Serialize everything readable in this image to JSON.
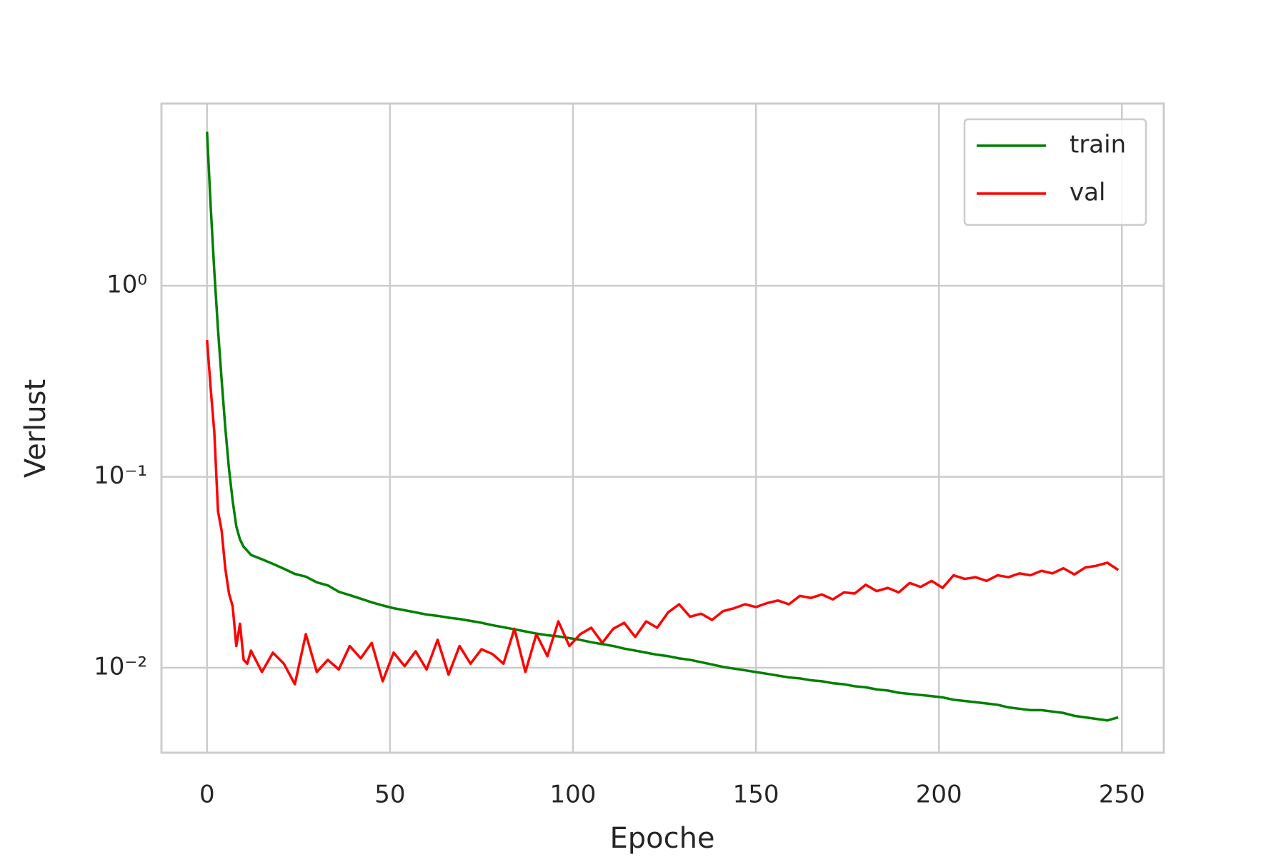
{
  "chart_data": {
    "type": "line",
    "xlabel": "Epoche",
    "ylabel": "Verlust",
    "yscale": "log",
    "grid": true,
    "legend": "upper right",
    "x": [
      0,
      1,
      2,
      3,
      4,
      5,
      6,
      7,
      8,
      9,
      10,
      11,
      12,
      15,
      18,
      21,
      24,
      27,
      30,
      33,
      36,
      39,
      42,
      45,
      48,
      51,
      54,
      57,
      60,
      63,
      66,
      69,
      72,
      75,
      78,
      81,
      84,
      87,
      90,
      93,
      96,
      99,
      102,
      105,
      108,
      111,
      114,
      117,
      120,
      123,
      126,
      129,
      132,
      135,
      138,
      141,
      144,
      147,
      150,
      153,
      156,
      159,
      162,
      165,
      168,
      171,
      174,
      177,
      180,
      183,
      186,
      189,
      192,
      195,
      198,
      201,
      204,
      207,
      210,
      213,
      216,
      219,
      222,
      225,
      228,
      231,
      234,
      237,
      240,
      243,
      246,
      249
    ],
    "series": [
      {
        "name": "train",
        "color": "#008000",
        "values": [
          6.4,
          2.6,
          1.18,
          0.59,
          0.32,
          0.18,
          0.11,
          0.075,
          0.055,
          0.047,
          0.043,
          0.041,
          0.039,
          0.037,
          0.035,
          0.033,
          0.031,
          0.03,
          0.028,
          0.027,
          0.025,
          0.024,
          0.023,
          0.022,
          0.0212,
          0.0205,
          0.02,
          0.0195,
          0.019,
          0.0187,
          0.0183,
          0.018,
          0.0176,
          0.0172,
          0.0167,
          0.0163,
          0.0159,
          0.0155,
          0.0151,
          0.0148,
          0.0146,
          0.0143,
          0.014,
          0.0136,
          0.0133,
          0.013,
          0.0126,
          0.0123,
          0.012,
          0.0117,
          0.0115,
          0.0112,
          0.011,
          0.0107,
          0.0104,
          0.0101,
          0.0099,
          0.0097,
          0.0095,
          0.0093,
          0.0091,
          0.0089,
          0.0088,
          0.0086,
          0.0085,
          0.0083,
          0.0082,
          0.008,
          0.0079,
          0.0077,
          0.0076,
          0.0074,
          0.0073,
          0.0072,
          0.0071,
          0.007,
          0.0068,
          0.0067,
          0.0066,
          0.0065,
          0.0064,
          0.0062,
          0.0061,
          0.006,
          0.006,
          0.0059,
          0.0058,
          0.0056,
          0.0055,
          0.0054,
          0.0053,
          0.0055
        ]
      },
      {
        "name": "val",
        "color": "#ff0000",
        "values": [
          0.52,
          0.29,
          0.17,
          0.066,
          0.052,
          0.033,
          0.0245,
          0.021,
          0.013,
          0.017,
          0.011,
          0.0105,
          0.0123,
          0.0095,
          0.012,
          0.0105,
          0.0082,
          0.015,
          0.0095,
          0.011,
          0.0098,
          0.013,
          0.0112,
          0.0135,
          0.0085,
          0.012,
          0.0102,
          0.0122,
          0.0098,
          0.014,
          0.0092,
          0.013,
          0.0105,
          0.0125,
          0.0118,
          0.0105,
          0.016,
          0.0095,
          0.015,
          0.0115,
          0.0175,
          0.013,
          0.015,
          0.0162,
          0.0135,
          0.016,
          0.0172,
          0.0145,
          0.0175,
          0.0162,
          0.0195,
          0.0215,
          0.0185,
          0.0192,
          0.0178,
          0.0198,
          0.0205,
          0.0215,
          0.0208,
          0.0218,
          0.0225,
          0.0215,
          0.0238,
          0.0232,
          0.0242,
          0.0228,
          0.0248,
          0.0245,
          0.0272,
          0.0252,
          0.0262,
          0.0248,
          0.0278,
          0.0265,
          0.0285,
          0.0262,
          0.0305,
          0.0292,
          0.0298,
          0.0285,
          0.0305,
          0.0298,
          0.0312,
          0.0305,
          0.0322,
          0.0312,
          0.0332,
          0.0308,
          0.0335,
          0.0342,
          0.0355,
          0.0325
        ]
      }
    ],
    "xlim": [
      -12.45,
      261.45
    ],
    "xticks": [
      0,
      50,
      100,
      150,
      200,
      250
    ],
    "ylim": [
      0.00359,
      9.0
    ],
    "yticks": [
      {
        "value": 1,
        "label": "10⁰"
      },
      {
        "value": 0.1,
        "label": "10⁻¹"
      },
      {
        "value": 0.01,
        "label": "10⁻²"
      }
    ]
  }
}
